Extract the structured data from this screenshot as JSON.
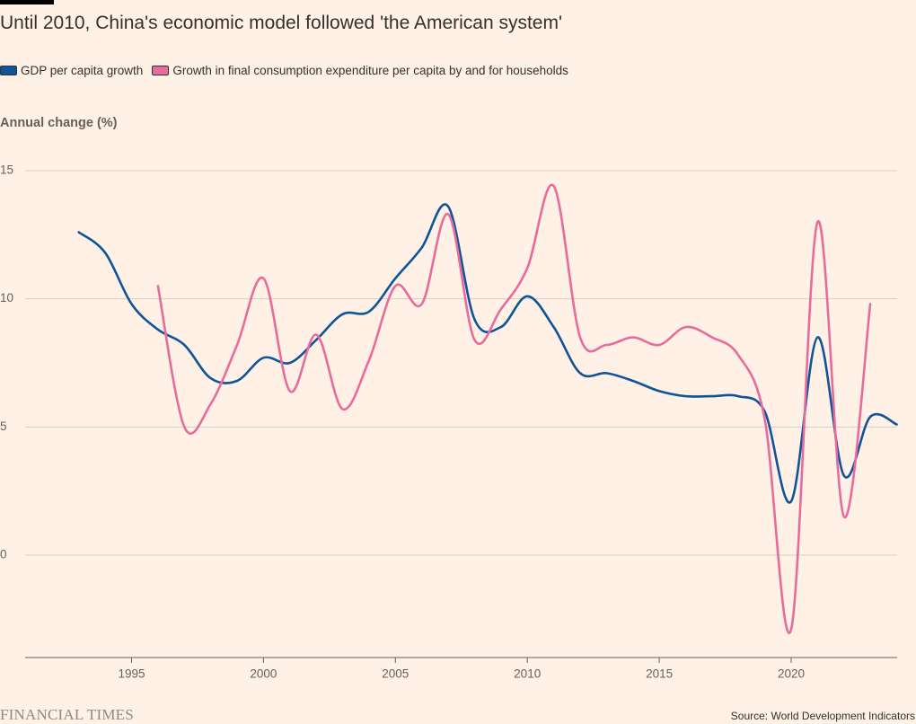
{
  "chart_data": {
    "type": "line",
    "title": "Until 2010, China's economic model followed 'the American system'",
    "ylabel": "Annual change (%)",
    "xlabel": "",
    "ylim": [
      -4,
      15
    ],
    "xlim": [
      1991,
      2024
    ],
    "y_ticks": [
      0,
      5,
      10,
      15
    ],
    "x_ticks": [
      1995,
      2000,
      2005,
      2010,
      2015,
      2020
    ],
    "grid": "horizontal",
    "legend_position": "top-left",
    "series": [
      {
        "name": "GDP per capita growth",
        "color": "#0f5499",
        "x": [
          1993,
          1994,
          1995,
          1996,
          1997,
          1998,
          1999,
          2000,
          2001,
          2002,
          2003,
          2004,
          2005,
          2006,
          2007,
          2008,
          2009,
          2010,
          2011,
          2012,
          2013,
          2014,
          2015,
          2016,
          2017,
          2018,
          2019,
          2020,
          2021,
          2022,
          2023,
          2024
        ],
        "y": [
          12.6,
          11.8,
          9.8,
          8.8,
          8.2,
          6.9,
          6.8,
          7.7,
          7.5,
          8.4,
          9.4,
          9.5,
          10.8,
          12.0,
          13.6,
          9.2,
          8.9,
          10.1,
          8.9,
          7.1,
          7.1,
          6.8,
          6.4,
          6.2,
          6.2,
          6.2,
          5.6,
          2.1,
          8.5,
          3.1,
          5.4,
          5.1
        ]
      },
      {
        "name": "Growth in final consumption expenditure per capita by and for households",
        "color": "#e86b9c",
        "x": [
          1996,
          1997,
          1998,
          1999,
          2000,
          2001,
          2002,
          2003,
          2004,
          2005,
          2006,
          2007,
          2008,
          2009,
          2010,
          2011,
          2012,
          2013,
          2014,
          2015,
          2016,
          2017,
          2018,
          2019,
          2020,
          2021,
          2022,
          2023
        ],
        "y": [
          10.5,
          5.0,
          5.9,
          8.2,
          10.8,
          6.4,
          8.6,
          5.7,
          7.6,
          10.5,
          9.8,
          13.3,
          8.4,
          9.6,
          11.2,
          14.4,
          8.5,
          8.2,
          8.5,
          8.2,
          8.9,
          8.5,
          7.8,
          5.3,
          -2.9,
          13.0,
          1.5,
          9.8
        ]
      }
    ]
  },
  "legend_items": [
    {
      "label": "GDP per capita growth",
      "color": "#0f5499"
    },
    {
      "label": "Growth in final consumption expenditure per capita by and for households",
      "color": "#e86b9c"
    }
  ],
  "footer": {
    "brand": "FINANCIAL TIMES",
    "source": "Source: World Development Indicators"
  }
}
